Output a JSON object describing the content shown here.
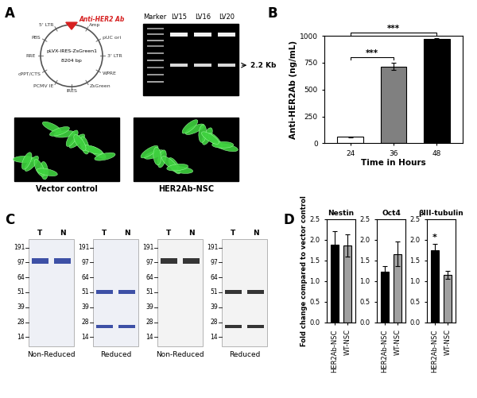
{
  "panel_labels": [
    "A",
    "B",
    "C",
    "D"
  ],
  "panel_A": {
    "plasmid": {
      "name": "pLVX-IRES-ZsGreen1",
      "size": "8204 bp",
      "features": [
        "5' LTR",
        "PBS",
        "RRE",
        "cPPT/CTS",
        "PCMV IE",
        "IRES",
        "ZsGreen",
        "WPRE",
        "3' LTR",
        "pUC ori",
        "Amp"
      ],
      "insert": "Anti-HER2 Ab",
      "color": "#d62020"
    },
    "gel": {
      "lanes": [
        "Marker",
        "LV15",
        "LV16",
        "LV20"
      ],
      "band_label": "2.2 Kb"
    },
    "images": [
      "Vector control",
      "HER2Ab-NSC"
    ]
  },
  "panel_C": {
    "blots": [
      {
        "lanes": [
          "T",
          "N"
        ],
        "markers": [
          191,
          97,
          64,
          51,
          39,
          28,
          14
        ],
        "condition": "Non-Reduced",
        "color": "#2a3f9e"
      },
      {
        "lanes": [
          "T",
          "N"
        ],
        "markers": [
          191,
          97,
          64,
          51,
          39,
          28,
          14
        ],
        "condition": "Reduced",
        "color": "#2a3f9e"
      },
      {
        "lanes": [
          "T",
          "N"
        ],
        "markers": [
          191,
          97,
          64,
          51,
          39,
          28,
          14
        ],
        "condition": "Non-Reduced",
        "color": "#202020"
      },
      {
        "lanes": [
          "T",
          "N"
        ],
        "markers": [
          191,
          97,
          64,
          51,
          39,
          28,
          14
        ],
        "condition": "Reduced",
        "color": "#202020"
      }
    ]
  },
  "chart_data": [
    {
      "type": "bar",
      "x_label": "Time in Hours",
      "y_label": "Anti-HER2Ab (ng/mL)",
      "categories": [
        "24",
        "36",
        "48"
      ],
      "values": [
        60,
        715,
        970
      ],
      "errors": [
        5,
        35,
        8
      ],
      "colors": [
        "#ffffff",
        "#808080",
        "#000000"
      ],
      "ylim": [
        0,
        1000
      ],
      "yticks": [
        0,
        250,
        500,
        750,
        1000
      ],
      "annotations": [
        {
          "text": "***",
          "from": "24",
          "to": "36"
        },
        {
          "text": "***",
          "from": "24",
          "to": "48"
        }
      ]
    },
    {
      "type": "bar",
      "title": "Nestin",
      "y_label": "Fold change compared to vector control",
      "categories": [
        "HER2Ab-NSC",
        "WT-NSC"
      ],
      "values": [
        1.88,
        1.85
      ],
      "errors": [
        0.32,
        0.27
      ],
      "colors": [
        "#000000",
        "#a0a0a0"
      ],
      "ylim": [
        0,
        2.5
      ],
      "yticks": [
        {
          "value": 0,
          "label": "0.0"
        },
        0.5,
        {
          "value": 1,
          "label": "1.0"
        },
        1.5,
        {
          "value": 2,
          "label": "2.0"
        },
        2.5
      ]
    },
    {
      "type": "bar",
      "title": "Oct4",
      "categories": [
        "HER2Ab-NSC",
        "WT-NSC"
      ],
      "values": [
        1.23,
        1.65
      ],
      "errors": [
        0.12,
        0.3
      ],
      "colors": [
        "#000000",
        "#a0a0a0"
      ],
      "ylim": [
        0,
        2.5
      ],
      "yticks": [
        {
          "value": 0,
          "label": "0.0"
        },
        0.5,
        {
          "value": 1,
          "label": "1.0"
        },
        1.5,
        {
          "value": 2,
          "label": "2.0"
        },
        2.5
      ]
    },
    {
      "type": "bar",
      "title": "βIII-tubulin",
      "categories": [
        "HER2Ab-NSC",
        "WT-NSC"
      ],
      "values": [
        1.75,
        1.15
      ],
      "errors": [
        0.15,
        0.1
      ],
      "colors": [
        "#000000",
        "#a0a0a0"
      ],
      "ylim": [
        0,
        2.5
      ],
      "yticks": [
        {
          "value": 0,
          "label": "0.0"
        },
        0.5,
        {
          "value": 1,
          "label": "1.0"
        },
        1.5,
        {
          "value": 2,
          "label": "2.0"
        },
        2.5
      ],
      "annotations": [
        {
          "text": "*",
          "category": "HER2Ab-NSC"
        }
      ]
    }
  ]
}
